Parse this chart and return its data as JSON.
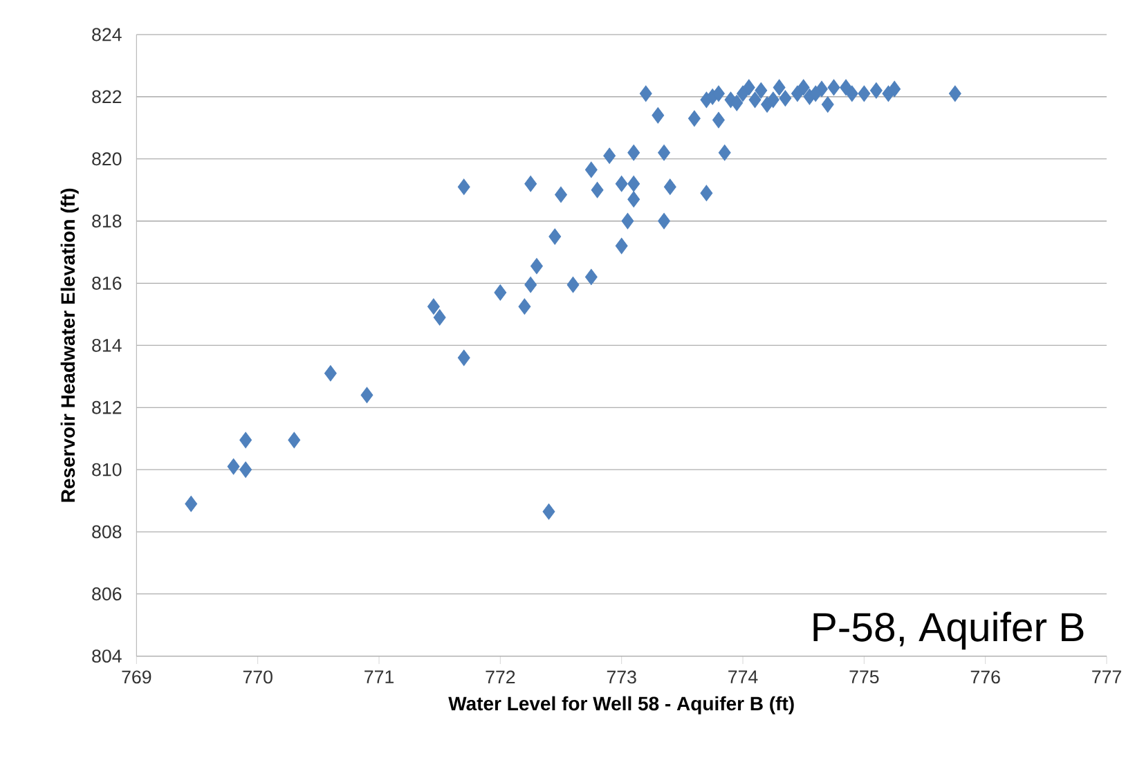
{
  "chart_data": {
    "type": "scatter",
    "xlabel": "Water Level for Well 58 - Aquifer B (ft)",
    "ylabel": "Reservoir Headwater Elevation (ft)",
    "annotations": [
      "P-58, Aquifer B"
    ],
    "x": [
      769.45,
      769.8,
      769.9,
      769.9,
      770.3,
      770.6,
      770.9,
      771.45,
      771.5,
      771.7,
      771.7,
      772.0,
      772.2,
      772.25,
      772.25,
      772.3,
      772.4,
      772.45,
      772.5,
      772.6,
      772.75,
      772.75,
      772.8,
      772.9,
      773.0,
      773.0,
      773.05,
      773.1,
      773.1,
      773.1,
      773.2,
      773.3,
      773.35,
      773.4,
      773.35,
      773.6,
      773.7,
      773.7,
      773.75,
      773.8,
      773.85,
      773.8,
      773.9,
      774.0,
      774.05,
      774.1,
      774.15,
      774.2,
      774.3,
      774.35,
      774.45,
      774.5,
      774.55,
      774.65,
      774.7,
      774.75,
      774.85,
      774.9,
      775.0,
      775.1,
      775.2,
      775.25,
      775.75,
      773.95,
      774.25,
      774.6
    ],
    "values": [
      808.9,
      810.1,
      810.0,
      810.95,
      810.95,
      813.1,
      812.4,
      815.25,
      814.9,
      813.6,
      819.1,
      815.7,
      815.25,
      819.2,
      815.95,
      816.55,
      808.65,
      817.5,
      818.85,
      815.95,
      819.65,
      816.2,
      819.0,
      820.1,
      819.2,
      817.2,
      818.0,
      819.2,
      818.7,
      820.2,
      822.1,
      821.4,
      820.2,
      819.1,
      818.0,
      821.3,
      818.9,
      821.9,
      822.0,
      821.25,
      820.2,
      822.1,
      821.9,
      822.1,
      822.3,
      821.9,
      822.2,
      821.75,
      822.3,
      821.95,
      822.1,
      822.3,
      822.0,
      822.25,
      821.75,
      822.3,
      822.3,
      822.1,
      822.1,
      822.2,
      822.1,
      822.25,
      822.1,
      821.8,
      821.9,
      822.1
    ],
    "color": "#4f81bd",
    "marker": "diamond",
    "xlim": [
      769,
      777
    ],
    "xticks": [
      769,
      770,
      771,
      772,
      773,
      774,
      775,
      776,
      777
    ],
    "ylim": [
      804,
      824
    ],
    "yticks": [
      804,
      806,
      808,
      810,
      812,
      814,
      816,
      818,
      820,
      822,
      824
    ],
    "grid": "y"
  }
}
